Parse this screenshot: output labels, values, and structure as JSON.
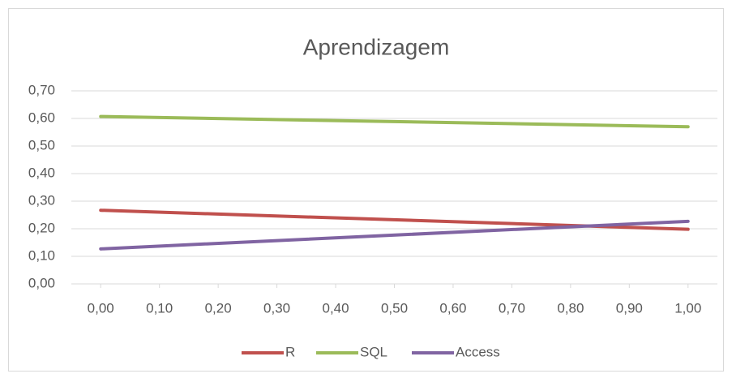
{
  "chart_data": {
    "type": "line",
    "title": "Aprendizagem",
    "x": [
      0,
      1
    ],
    "series": [
      {
        "name": "R",
        "color": "#c0504d",
        "values": [
          0.267,
          0.198
        ]
      },
      {
        "name": "SQL",
        "color": "#9bbb59",
        "values": [
          0.607,
          0.57
        ]
      },
      {
        "name": "Access",
        "color": "#8064a2",
        "values": [
          0.127,
          0.227
        ]
      }
    ],
    "xlim": [
      -0.05,
      1.05
    ],
    "xticks": [
      {
        "value": 0,
        "label": "0,00"
      },
      {
        "value": 0.1,
        "label": "0,10"
      },
      {
        "value": 0.2,
        "label": "0,20"
      },
      {
        "value": 0.3,
        "label": "0,30"
      },
      {
        "value": 0.4,
        "label": "0,40"
      },
      {
        "value": 0.5,
        "label": "0,50"
      },
      {
        "value": 0.6,
        "label": "0,60"
      },
      {
        "value": 0.7,
        "label": "0,70"
      },
      {
        "value": 0.8,
        "label": "0,80"
      },
      {
        "value": 0.9,
        "label": "0,90"
      },
      {
        "value": 1,
        "label": "1,00"
      }
    ],
    "ylim": [
      0,
      0.7
    ],
    "yticks": [
      {
        "value": 0,
        "label": "0,00"
      },
      {
        "value": 0.1,
        "label": "0,10"
      },
      {
        "value": 0.2,
        "label": "0,20"
      },
      {
        "value": 0.3,
        "label": "0,30"
      },
      {
        "value": 0.4,
        "label": "0,40"
      },
      {
        "value": 0.5,
        "label": "0,50"
      },
      {
        "value": 0.6,
        "label": "0,60"
      },
      {
        "value": 0.7,
        "label": "0,70"
      }
    ],
    "grid": true,
    "legend": "bottom"
  }
}
